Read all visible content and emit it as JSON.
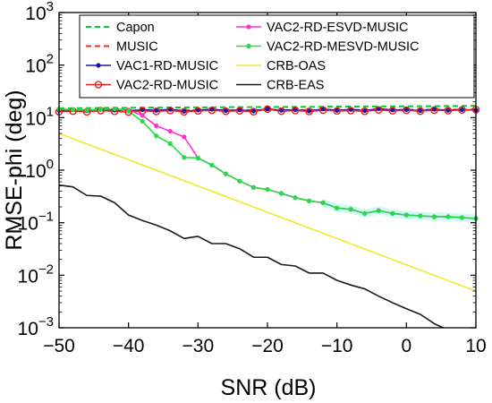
{
  "chart_data": {
    "type": "line",
    "title": "",
    "xlabel": "SNR (dB)",
    "ylabel": "RMSE-phi (deg)",
    "xlim": [
      -50,
      10
    ],
    "ylim": [
      0.001,
      1000
    ],
    "yscale": "log",
    "grid": false,
    "legend_position": "top",
    "xticks": [
      {
        "value": -50,
        "label": "−50"
      },
      {
        "value": -40,
        "label": "−40"
      },
      {
        "value": -30,
        "label": "−30"
      },
      {
        "value": -20,
        "label": "−20"
      },
      {
        "value": -10,
        "label": "−10"
      },
      {
        "value": 0,
        "label": "0"
      },
      {
        "value": 10,
        "label": "10"
      }
    ],
    "yticks": [
      {
        "value": 0.001,
        "base": "10",
        "exp": "−3"
      },
      {
        "value": 0.01,
        "base": "10",
        "exp": "−2"
      },
      {
        "value": 0.1,
        "base": "10",
        "exp": "−1"
      },
      {
        "value": 1,
        "base": "10",
        "exp": "0"
      },
      {
        "value": 10,
        "base": "10",
        "exp": "1"
      },
      {
        "value": 100,
        "base": "10",
        "exp": "2"
      },
      {
        "value": 1000,
        "base": "10",
        "exp": "3"
      }
    ],
    "x": [
      -50,
      -48,
      -46,
      -44,
      -42,
      -40,
      -38,
      -36,
      -34,
      -32,
      -30,
      -28,
      -26,
      -24,
      -22,
      -20,
      -18,
      -16,
      -14,
      -12,
      -10,
      -8,
      -6,
      -4,
      -2,
      0,
      2,
      4,
      6,
      8,
      10
    ],
    "series": [
      {
        "name": "Capon",
        "color": "#00cc33",
        "dash": "dashed",
        "marker": "none",
        "values": [
          15,
          15.1,
          15.2,
          15.3,
          15.4,
          15.4,
          15.5,
          15.5,
          15.6,
          15.6,
          15.7,
          15.7,
          15.8,
          15.8,
          15.9,
          15.9,
          16,
          16,
          16.1,
          16.1,
          16.2,
          16.2,
          16.3,
          16.3,
          16.4,
          16.4,
          16.5,
          16.5,
          16.6,
          16.7,
          16.8
        ]
      },
      {
        "name": "MUSIC",
        "color": "#ff2a2a",
        "dash": "dashed",
        "marker": "none",
        "values": [
          13.5,
          13.6,
          13.5,
          13.7,
          13.6,
          13.6,
          13.7,
          13.6,
          13.7,
          13.7,
          13.8,
          13.7,
          13.8,
          13.8,
          13.9,
          13.8,
          13.9,
          13.9,
          14,
          13.9,
          14,
          14,
          14.1,
          14,
          14.1,
          14.1,
          14.2,
          14.1,
          14.2,
          14.2,
          14.3
        ]
      },
      {
        "name": "VAC1-RD-MUSIC",
        "color": "#1a1aa8",
        "dash": "solid",
        "marker": "dot",
        "values": [
          13.8,
          14.1,
          13.5,
          14.3,
          13.9,
          13.3,
          14.2,
          13.7,
          14.4,
          13.2,
          13.9,
          14.5,
          13.6,
          14,
          13.4,
          14.7,
          13.8,
          14.1,
          13.3,
          14.6,
          13.7,
          14.3,
          13.5,
          14.8,
          13.9,
          14.2,
          13.6,
          14.4,
          13.8,
          14.1,
          13.9
        ]
      },
      {
        "name": "VAC2-RD-MUSIC",
        "color": "#e8201c",
        "dash": "solid",
        "marker": "circle",
        "values": [
          13,
          13.3,
          12.9,
          13.6,
          13.2,
          12.8,
          13.5,
          13.1,
          13.7,
          12.9,
          13.4,
          13.8,
          13.2,
          13.5,
          13,
          14.5,
          13.3,
          13.7,
          13.1,
          13.9,
          13.4,
          13.6,
          13.2,
          14,
          13.5,
          13.8,
          13.3,
          13.9,
          13.6,
          14,
          14.2
        ]
      },
      {
        "name": "VAC2-RD-ESVD-MUSIC",
        "color": "#ff33cc",
        "dash": "solid",
        "marker": "dot",
        "values": [
          14.5,
          14.2,
          13.8,
          14.3,
          14.7,
          14,
          11,
          7,
          5.5,
          4.3,
          1.7,
          1.25,
          0.85,
          0.62,
          0.47,
          0.43,
          0.36,
          0.3,
          0.26,
          0.24,
          0.19,
          0.18,
          0.15,
          0.17,
          0.15,
          0.14,
          0.135,
          0.13,
          0.13,
          0.125,
          0.12
        ]
      },
      {
        "name": "VAC2-RD-MESVD-MUSIC",
        "color": "#22dd44",
        "dash": "solid",
        "marker": "dot",
        "values": [
          14.5,
          14.2,
          13.8,
          14.3,
          14.7,
          13.2,
          8.5,
          4.5,
          3.2,
          1.75,
          1.7,
          1.25,
          0.85,
          0.62,
          0.47,
          0.43,
          0.36,
          0.3,
          0.26,
          0.24,
          0.19,
          0.18,
          0.15,
          0.17,
          0.15,
          0.14,
          0.135,
          0.13,
          0.13,
          0.125,
          0.12
        ]
      },
      {
        "name": "CRB-OAS",
        "color": "#f2e82c",
        "dash": "solid",
        "marker": "none",
        "x": [
          -50,
          10
        ],
        "values": [
          5,
          0.005
        ]
      },
      {
        "name": "CRB-EAS",
        "color": "#1a1a1a",
        "dash": "solid",
        "marker": "none",
        "x": [
          -50,
          -48,
          -46,
          -44,
          -42,
          -40,
          -38,
          -36,
          -34,
          -32,
          -30,
          -28,
          -26,
          -24,
          -22,
          -20,
          -18,
          -16,
          -14,
          -12,
          -10,
          -8,
          -6,
          -4,
          -2,
          0,
          2,
          4,
          5.3
        ],
        "values": [
          0.52,
          0.48,
          0.33,
          0.32,
          0.24,
          0.14,
          0.11,
          0.09,
          0.07,
          0.05,
          0.055,
          0.04,
          0.04,
          0.032,
          0.022,
          0.022,
          0.016,
          0.015,
          0.011,
          0.011,
          0.008,
          0.0065,
          0.0055,
          0.004,
          0.003,
          0.0023,
          0.0018,
          0.0012,
          0.001
        ]
      }
    ]
  }
}
